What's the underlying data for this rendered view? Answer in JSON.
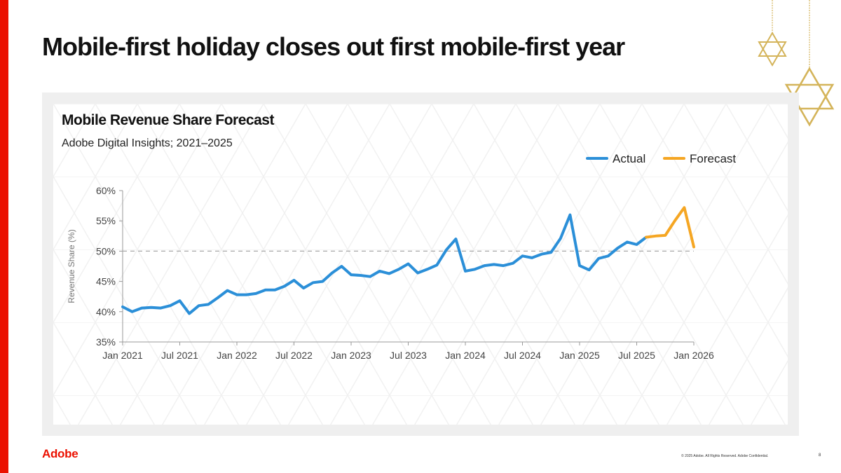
{
  "slide": {
    "title": "Mobile-first holiday closes out first mobile-first year",
    "logo_text": "Adobe",
    "footer": "© 2025 Adobe. All Rights Reserved. Adobe Confidential.",
    "page_number": "8"
  },
  "colors": {
    "brand_red": "#eb1000",
    "actual": "#2b8fd8",
    "forecast": "#f5a623",
    "reference_line": "#aaaaaa",
    "ornament": "#d4b45a"
  },
  "chart_data": {
    "type": "line",
    "title": "Mobile Revenue Share Forecast",
    "subtitle": "Adobe Digital Insights; 2021–2025",
    "ylabel": "Revenue Share (%)",
    "xlabel": "",
    "ylim": [
      35,
      60
    ],
    "y_ticks": [
      35,
      40,
      45,
      50,
      55,
      60
    ],
    "y_tick_labels": [
      "35%",
      "40%",
      "45%",
      "50%",
      "55%",
      "60%"
    ],
    "x_range": [
      0,
      60
    ],
    "x_ticks": [
      0,
      6,
      12,
      18,
      24,
      30,
      36,
      42,
      48,
      54,
      60
    ],
    "x_tick_labels": [
      "Jan 2021",
      "Jul 2021",
      "Jan 2022",
      "Jul 2022",
      "Jan 2023",
      "Jul 2023",
      "Jan 2024",
      "Jul 2024",
      "Jan 2025",
      "Jul 2025",
      "Jan 2026"
    ],
    "reference_line": 50,
    "legend_position": "top-right",
    "series": [
      {
        "name": "Actual",
        "color": "#2b8fd8",
        "x": [
          0,
          1,
          2,
          3,
          4,
          5,
          6,
          7,
          8,
          9,
          10,
          11,
          12,
          13,
          14,
          15,
          16,
          17,
          18,
          19,
          20,
          21,
          22,
          23,
          24,
          25,
          26,
          27,
          28,
          29,
          30,
          31,
          32,
          33,
          34,
          35,
          36,
          37,
          38,
          39,
          40,
          41,
          42,
          43,
          44,
          45,
          46,
          47,
          48,
          49,
          50,
          51,
          52,
          53,
          54,
          55
        ],
        "values": [
          40.8,
          40.0,
          40.6,
          40.7,
          40.6,
          41.0,
          41.8,
          39.7,
          41.0,
          41.2,
          42.3,
          43.5,
          42.8,
          42.8,
          43.0,
          43.6,
          43.6,
          44.2,
          45.2,
          43.9,
          44.8,
          45.0,
          46.4,
          47.5,
          46.1,
          46.0,
          45.8,
          46.7,
          46.3,
          47.0,
          47.9,
          46.4,
          47.0,
          47.7,
          50.2,
          52.0,
          46.7,
          47.0,
          47.6,
          47.8,
          47.6,
          48.0,
          49.2,
          48.9,
          49.5,
          49.8,
          52.1,
          56.0,
          47.6,
          46.9,
          48.8,
          49.2,
          50.5,
          51.5,
          51.1,
          52.3
        ]
      },
      {
        "name": "Forecast",
        "color": "#f5a623",
        "x": [
          55,
          56,
          57,
          58,
          59,
          60
        ],
        "values": [
          52.3,
          52.5,
          52.6,
          55.0,
          57.2,
          50.7
        ]
      }
    ]
  }
}
